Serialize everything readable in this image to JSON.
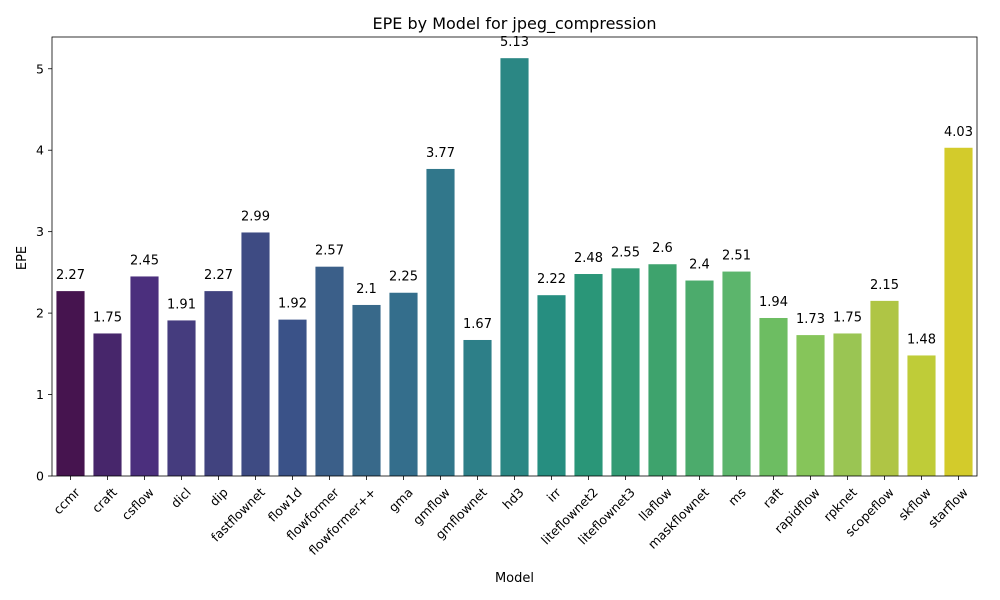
{
  "chart_data": {
    "type": "bar",
    "title": "EPE by Model for jpeg_compression",
    "xlabel": "Model",
    "ylabel": "EPE",
    "ylim": [
      0,
      5.39
    ],
    "yticks": [
      0,
      1,
      2,
      3,
      4,
      5
    ],
    "grid": false,
    "palette": "viridis",
    "categories": [
      "ccmr",
      "craft",
      "csflow",
      "dicl",
      "dip",
      "fastflownet",
      "flow1d",
      "flowformer",
      "flowformer++",
      "gma",
      "gmflow",
      "gmflownet",
      "hd3",
      "irr",
      "liteflownet2",
      "liteflownet3",
      "llaflow",
      "maskflownet",
      "ms",
      "raft",
      "rapidflow",
      "rpknet",
      "scopeflow",
      "skflow",
      "starflow"
    ],
    "values": [
      2.27,
      1.75,
      2.45,
      1.91,
      2.27,
      2.99,
      1.92,
      2.57,
      2.1,
      2.25,
      3.77,
      1.67,
      5.13,
      2.22,
      2.48,
      2.55,
      2.6,
      2.4,
      2.51,
      1.94,
      1.73,
      1.75,
      2.15,
      1.48,
      4.03
    ],
    "value_labels": [
      "2.27",
      "1.75",
      "2.45",
      "1.91",
      "2.27",
      "2.99",
      "1.92",
      "2.57",
      "2.1",
      "2.25",
      "3.77",
      "1.67",
      "5.13",
      "2.22",
      "2.48",
      "2.55",
      "2.6",
      "2.4",
      "2.51",
      "1.94",
      "1.73",
      "1.75",
      "2.15",
      "1.48",
      "4.03"
    ],
    "colors": [
      "#46144f",
      "#47266b",
      "#4b2f7d",
      "#453c7e",
      "#41437f",
      "#3e4b83",
      "#3a5288",
      "#3b5f89",
      "#38698a",
      "#346e8c",
      "#31778b",
      "#2d7f88",
      "#2b8784",
      "#268e80",
      "#2a9678",
      "#339b74",
      "#3ea36d",
      "#4cab6c",
      "#5cb56c",
      "#6dbd62",
      "#86c55a",
      "#9ac553",
      "#afc545",
      "#bfcc38",
      "#d3cb2b"
    ]
  }
}
